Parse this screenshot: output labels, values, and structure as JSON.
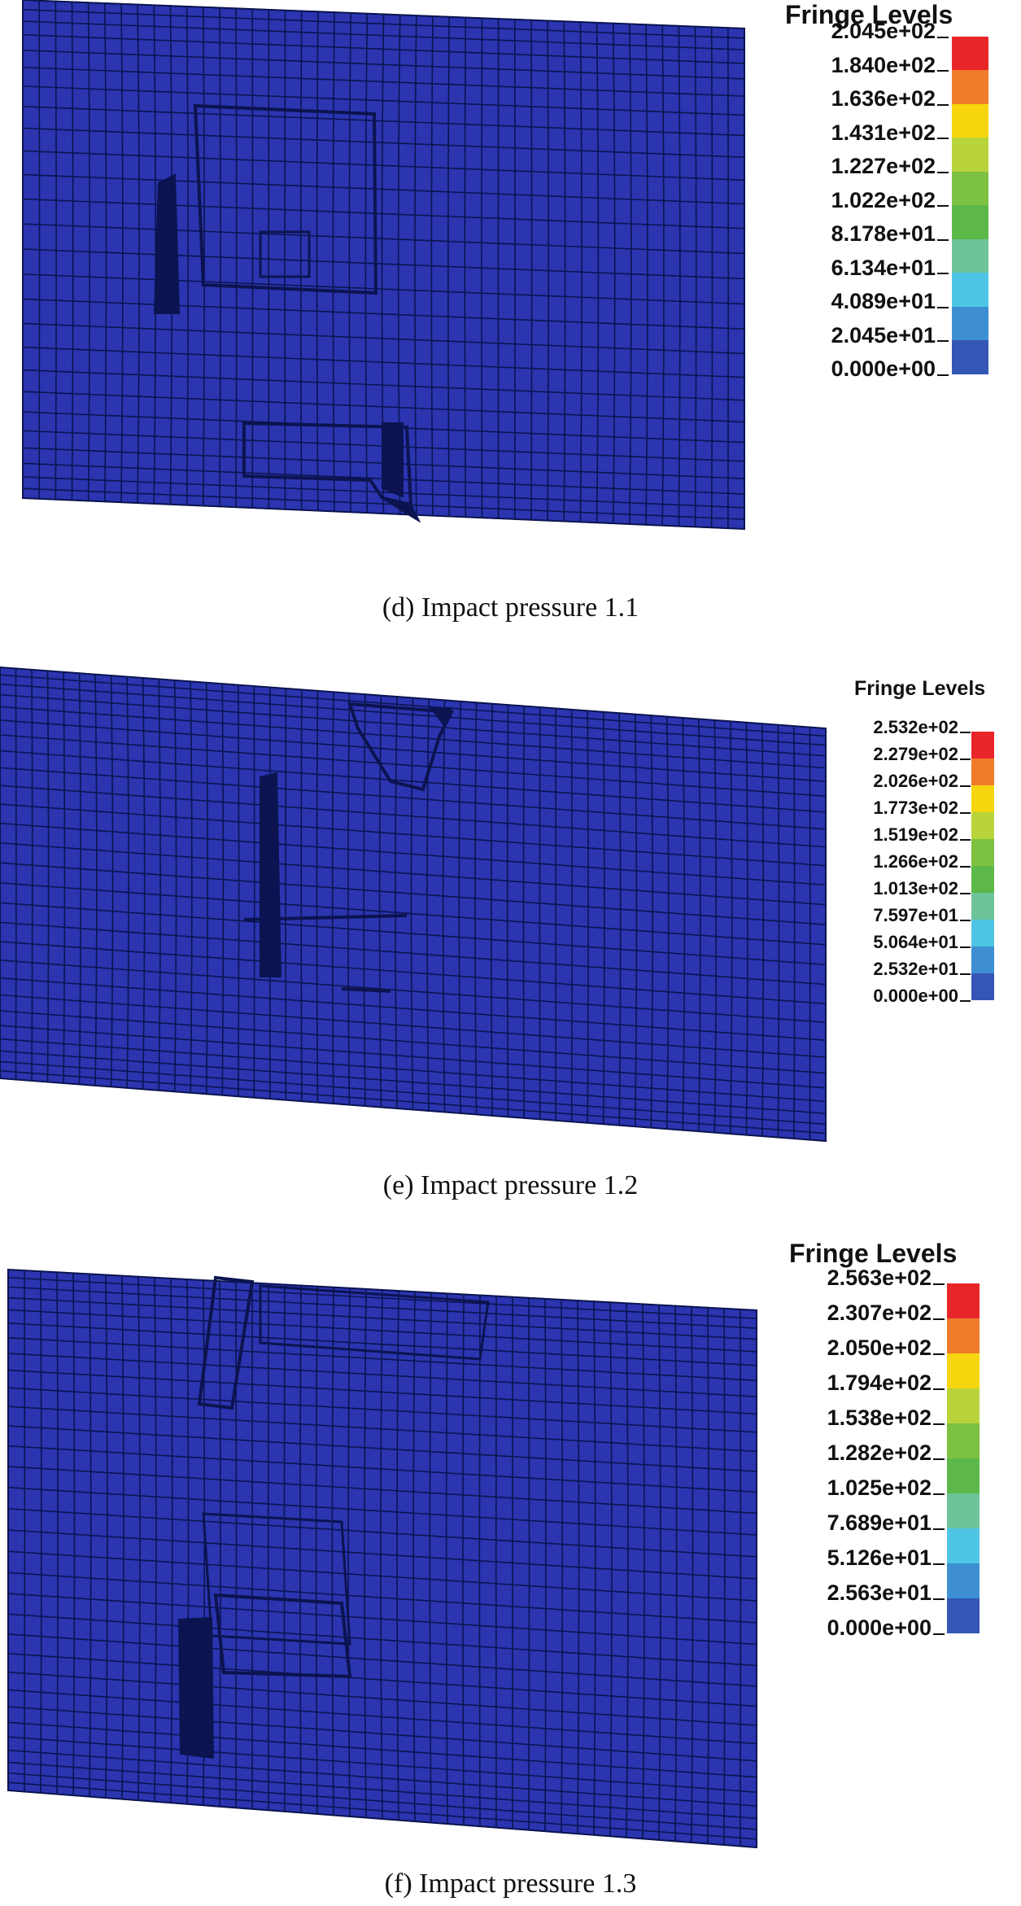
{
  "mesh_color": "#2b35b0",
  "mesh_line_color": "#0b1450",
  "panels": [
    {
      "id": "d",
      "legend_title": "Fringe Levels",
      "levels": [
        "2.045e+02",
        "1.840e+02",
        "1.636e+02",
        "1.431e+02",
        "1.227e+02",
        "1.022e+02",
        "8.178e+01",
        "6.134e+01",
        "4.089e+01",
        "2.045e+01",
        "0.000e+00"
      ],
      "caption": "(d) Impact pressure 1.1"
    },
    {
      "id": "e",
      "legend_title": "Fringe Levels",
      "levels": [
        "2.532e+02",
        "2.279e+02",
        "2.026e+02",
        "1.773e+02",
        "1.519e+02",
        "1.266e+02",
        "1.013e+02",
        "7.597e+01",
        "5.064e+01",
        "2.532e+01",
        "0.000e+00"
      ],
      "caption": "(e) Impact pressure 1.2"
    },
    {
      "id": "f",
      "legend_title": "Fringe Levels",
      "levels": [
        "2.563e+02",
        "2.307e+02",
        "2.050e+02",
        "1.794e+02",
        "1.538e+02",
        "1.282e+02",
        "1.025e+02",
        "7.689e+01",
        "5.126e+01",
        "2.563e+01",
        "0.000e+00"
      ],
      "caption": "(f) Impact pressure 1.3"
    }
  ],
  "fringe_colors": [
    "#e8262a",
    "#f07b2a",
    "#f6d60e",
    "#b9d43a",
    "#7dc142",
    "#5cb848",
    "#6cc498",
    "#4fc5e6",
    "#3d8fd2",
    "#3556b5"
  ]
}
